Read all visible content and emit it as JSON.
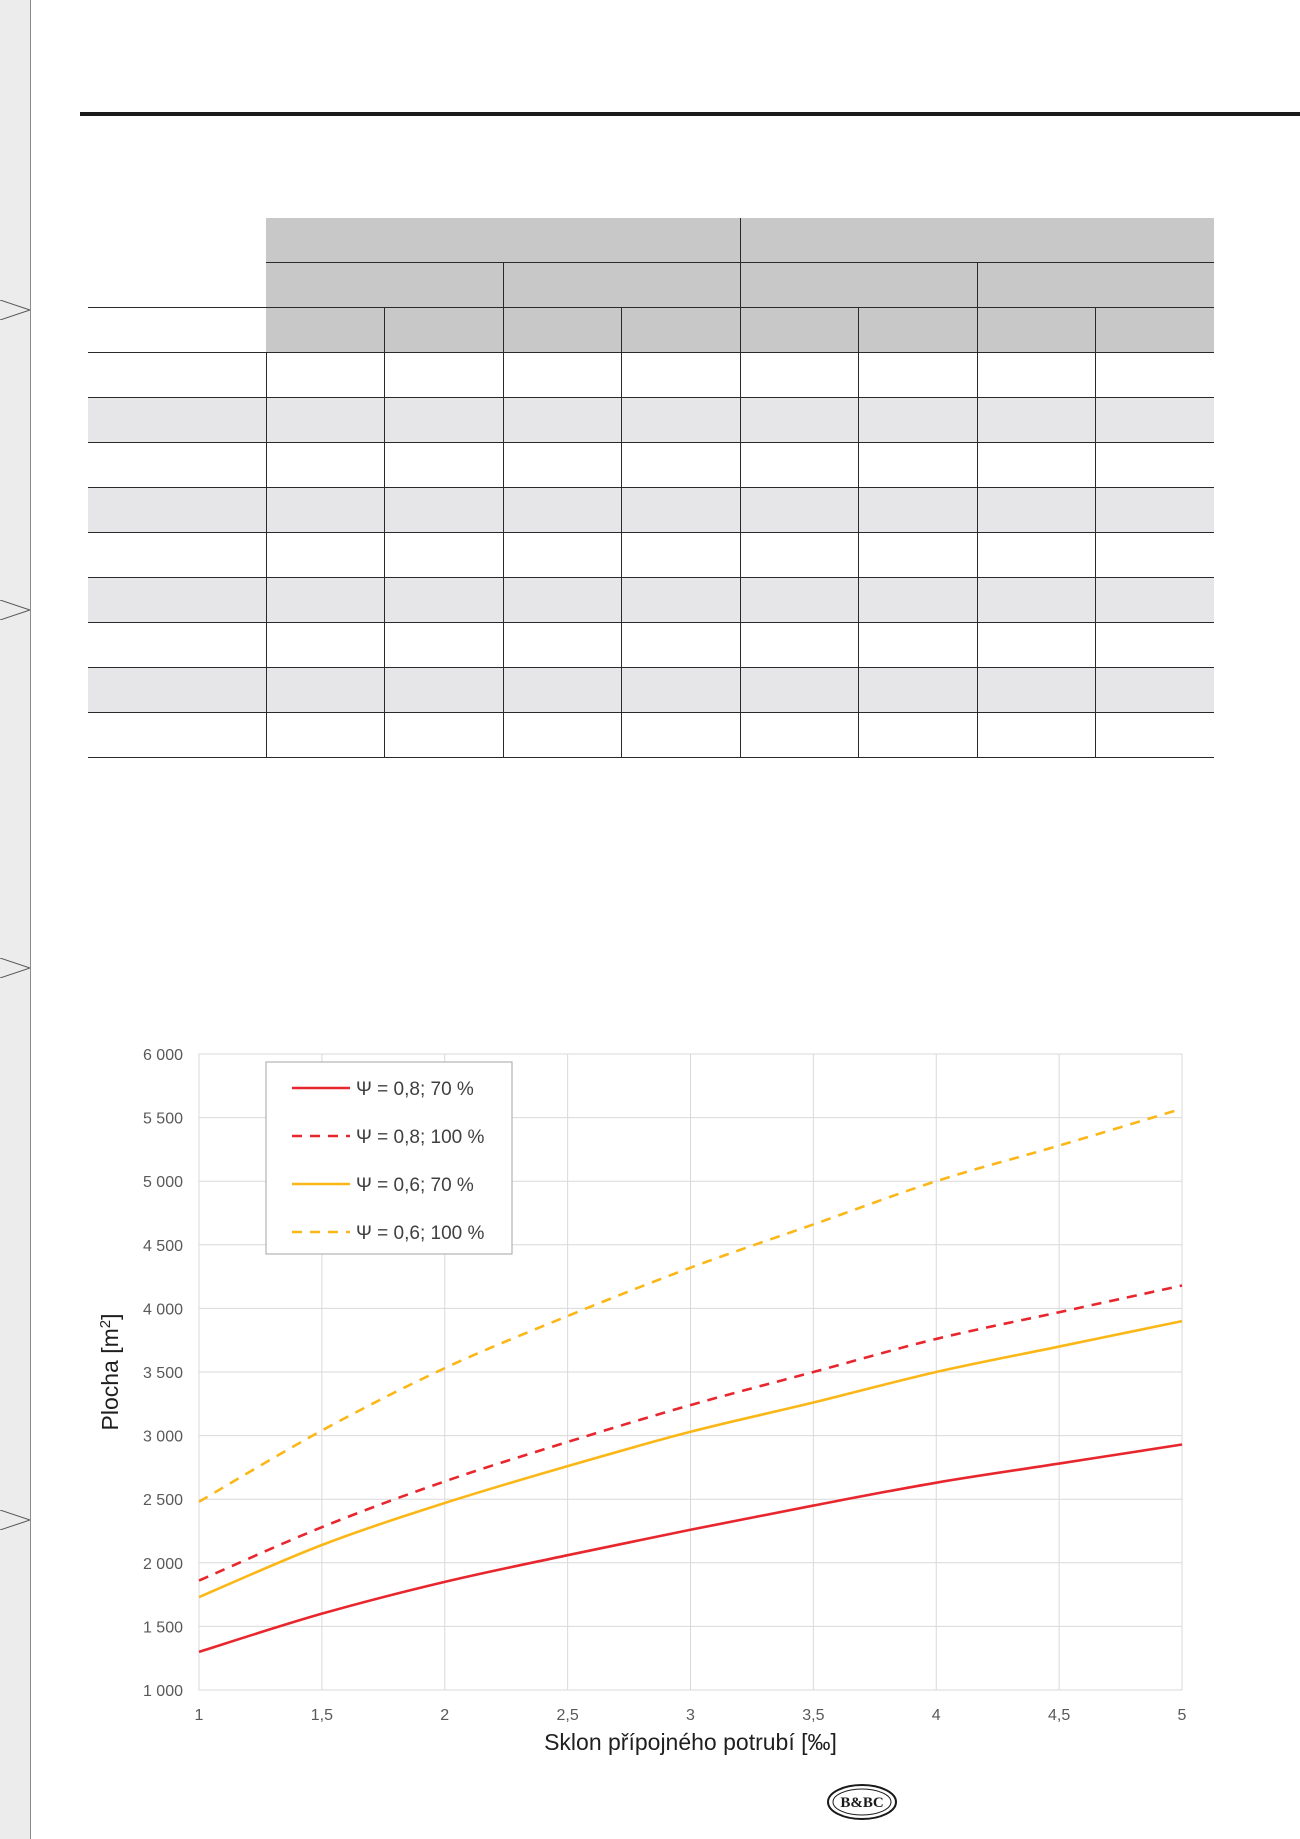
{
  "chart_data": {
    "type": "line",
    "title": "",
    "xlabel": "Sklon přípojného potrubí [‰]",
    "ylabel": "Plocha [m2]",
    "xlim": [
      1,
      5
    ],
    "ylim": [
      1000,
      6000
    ],
    "grid": true,
    "legend_position": "top-left",
    "xticks": [
      "1",
      "1,5",
      "2",
      "2,5",
      "3",
      "3,5",
      "4",
      "4,5",
      "5"
    ],
    "yticks": [
      "1 000",
      "1 500",
      "2 000",
      "2 500",
      "3 000",
      "3 500",
      "4 000",
      "4 500",
      "5 000",
      "5 500",
      "6 000"
    ],
    "x": [
      1,
      1.5,
      2,
      2.5,
      3,
      3.5,
      4,
      4.5,
      5
    ],
    "series": [
      {
        "name": "Ψ = 0,8; 70 %",
        "color": "#e8262d",
        "dash": false,
        "values": [
          1300,
          1600,
          1850,
          2060,
          2260,
          2450,
          2630,
          2780,
          2930
        ]
      },
      {
        "name": "Ψ = 0,8; 100 %",
        "color": "#e8262d",
        "dash": true,
        "values": [
          1860,
          2280,
          2640,
          2950,
          3240,
          3500,
          3760,
          3970,
          4180
        ]
      },
      {
        "name": "Ψ = 0,6; 70 %",
        "color": "#fbb717",
        "dash": false,
        "values": [
          1730,
          2140,
          2470,
          2760,
          3030,
          3260,
          3500,
          3700,
          3900
        ]
      },
      {
        "name": "Ψ = 0,6; 100 %",
        "color": "#fbb717",
        "dash": true,
        "values": [
          2480,
          3040,
          3530,
          3940,
          4320,
          4660,
          5000,
          5280,
          5570
        ]
      }
    ]
  },
  "logo": {
    "text": "B&BC"
  },
  "colors": {
    "header_fill": "#c8c8c8",
    "alt_row": "#e6e6e9",
    "side_strip": "#ececec"
  }
}
